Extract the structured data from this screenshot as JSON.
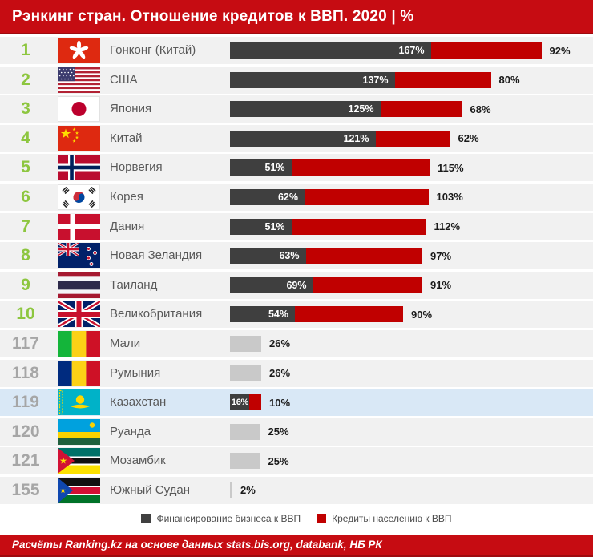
{
  "header": {
    "title": "Рэнкинг стран. Отношение кредитов к ВВП. 2020 | %"
  },
  "chart_data": {
    "type": "bar",
    "orientation": "horizontal",
    "unit": "%",
    "title": "Рэнкинг стран. Отношение кредитов к ВВП. 2020 | %",
    "legend": [
      "Финансирование бизнеса к ВВП",
      "Кредиты населению к ВВП"
    ],
    "legend_position": "bottom",
    "series_colors": {
      "business": "#3f3f3f",
      "household": "#c00000",
      "single_value": "#c9c9c9"
    },
    "rows": [
      {
        "rank": "1",
        "name": "Гонконг (Китай)",
        "flag": "hong-kong",
        "business": 167,
        "household": 92,
        "business_label": "167%",
        "household_label": "92%",
        "highlight": false
      },
      {
        "rank": "2",
        "name": "США",
        "flag": "usa",
        "business": 137,
        "household": 80,
        "business_label": "137%",
        "household_label": "80%",
        "highlight": false
      },
      {
        "rank": "3",
        "name": "Япония",
        "flag": "japan",
        "business": 125,
        "household": 68,
        "business_label": "125%",
        "household_label": "68%",
        "highlight": false
      },
      {
        "rank": "4",
        "name": "Китай",
        "flag": "china",
        "business": 121,
        "household": 62,
        "business_label": "121%",
        "household_label": "62%",
        "highlight": false
      },
      {
        "rank": "5",
        "name": "Норвегия",
        "flag": "norway",
        "business": 51,
        "household": 115,
        "business_label": "51%",
        "household_label": "115%",
        "highlight": false
      },
      {
        "rank": "6",
        "name": "Корея",
        "flag": "south-korea",
        "business": 62,
        "household": 103,
        "business_label": "62%",
        "household_label": "103%",
        "highlight": false
      },
      {
        "rank": "7",
        "name": "Дания",
        "flag": "denmark",
        "business": 51,
        "household": 112,
        "business_label": "51%",
        "household_label": "112%",
        "highlight": false
      },
      {
        "rank": "8",
        "name": "Новая Зеландия",
        "flag": "new-zealand",
        "business": 63,
        "household": 97,
        "business_label": "63%",
        "household_label": "97%",
        "highlight": false
      },
      {
        "rank": "9",
        "name": "Таиланд",
        "flag": "thailand",
        "business": 69,
        "household": 91,
        "business_label": "69%",
        "household_label": "91%",
        "highlight": false
      },
      {
        "rank": "10",
        "name": "Великобритания",
        "flag": "united-kingdom",
        "business": 54,
        "household": 90,
        "business_label": "54%",
        "household_label": "90%",
        "highlight": false
      },
      {
        "rank": "117",
        "name": "Мали",
        "flag": "mali",
        "value": 26,
        "value_label": "26%",
        "highlight": false
      },
      {
        "rank": "118",
        "name": "Румыния",
        "flag": "romania",
        "value": 26,
        "value_label": "26%",
        "highlight": false
      },
      {
        "rank": "119",
        "name": "Казахстан",
        "flag": "kazakhstan",
        "business": 16,
        "household": 10,
        "business_label": "16%",
        "household_label": "10%",
        "highlight": true
      },
      {
        "rank": "120",
        "name": "Руанда",
        "flag": "rwanda",
        "value": 25,
        "value_label": "25%",
        "highlight": false
      },
      {
        "rank": "121",
        "name": "Мозамбик",
        "flag": "mozambique",
        "value": 25,
        "value_label": "25%",
        "highlight": false
      },
      {
        "rank": "155",
        "name": "Южный Судан",
        "flag": "south-sudan",
        "value": 2,
        "value_label": "2%",
        "highlight": false
      }
    ]
  },
  "colors": {
    "header_red": "#c60c12",
    "bar_dark": "#3f3f3f",
    "bar_red": "#c00000",
    "bar_gray": "#c9c9c9",
    "rank_green": "#8dc63f",
    "rank_gray": "#a6a6a6",
    "row_bg": "#f1f1f1",
    "highlight_row_bg": "#d9e8f6"
  },
  "footer": {
    "text": "Расчёты Ranking.kz на основе данных stats.bis.org, databank, НБ РК"
  }
}
